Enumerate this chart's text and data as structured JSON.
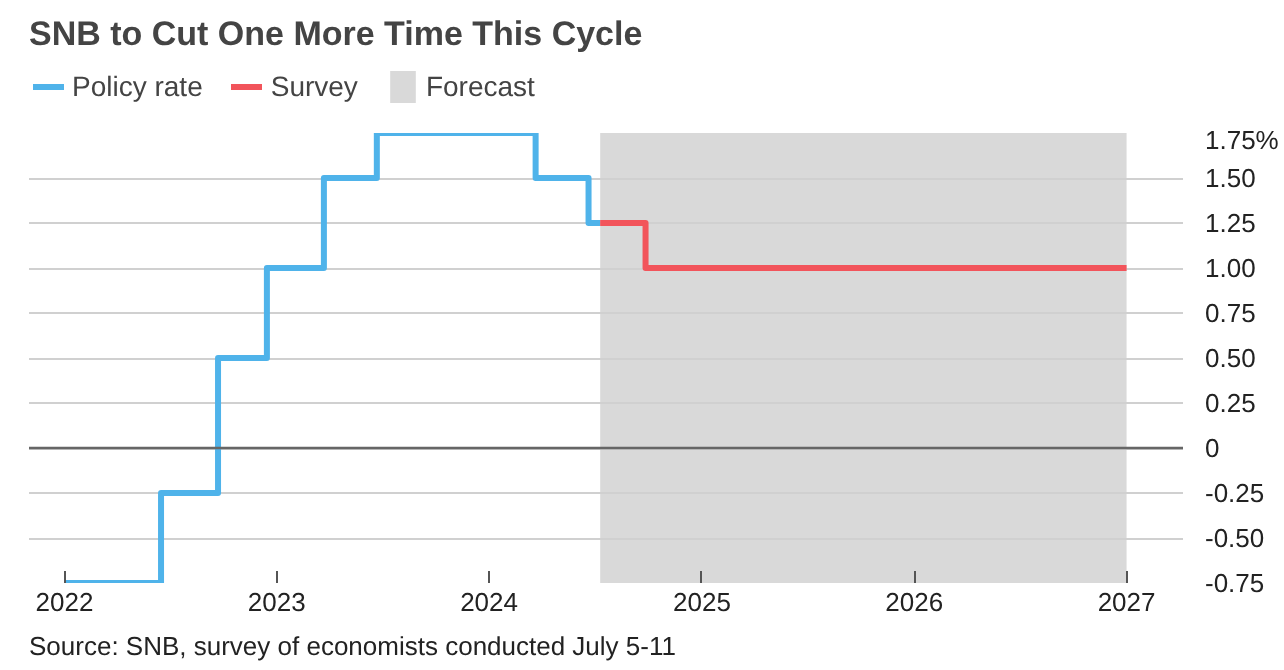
{
  "chart_data": {
    "type": "step",
    "title": "SNB to Cut One More Time This Cycle",
    "annotations": [
      "Source: SNB, survey of economists conducted July 5-11"
    ],
    "series": [
      {
        "name": "Policy rate",
        "color": "#4fb3ea",
        "x": [
          "2022-01-01",
          "2022-06-16",
          "2022-09-22",
          "2022-12-15",
          "2023-03-23",
          "2023-06-22",
          "2024-03-21",
          "2024-06-20",
          "2024-07-10"
        ],
        "values": [
          -0.75,
          -0.25,
          0.5,
          1.0,
          1.5,
          1.75,
          1.5,
          1.25,
          1.25
        ]
      },
      {
        "name": "Survey",
        "color": "#f2545b",
        "x": [
          "2024-07-10",
          "2024-09-26",
          "2027-01-01"
        ],
        "values": [
          1.25,
          1.0,
          1.0
        ]
      }
    ],
    "bands": [
      {
        "axis": "x",
        "from": "2024-07-10",
        "to": "2027-01-01",
        "label": "Forecast",
        "color": "#d9d9d9"
      }
    ],
    "ref_lines": [
      {
        "axis": "y",
        "value": 0,
        "label": null,
        "color": "#666666"
      }
    ],
    "xlim": [
      "2021-11-01",
      "2027-04-08"
    ],
    "xticks": [
      {
        "value": "2022-01-01",
        "label": "2022"
      },
      {
        "value": "2023-01-01",
        "label": "2023"
      },
      {
        "value": "2024-01-01",
        "label": "2024"
      },
      {
        "value": "2025-01-01",
        "label": "2025"
      },
      {
        "value": "2026-01-01",
        "label": "2026"
      },
      {
        "value": "2027-01-01",
        "label": "2027"
      }
    ],
    "ylim": [
      -0.75,
      1.75
    ],
    "yticks": [
      {
        "value": 1.75,
        "label": "1.75%"
      },
      {
        "value": 1.5,
        "label": "1.50"
      },
      1.25,
      {
        "value": 1.0,
        "label": "1.00"
      },
      0.75,
      {
        "value": 0.5,
        "label": "0.50"
      },
      0.25,
      0,
      -0.25,
      {
        "value": -0.5,
        "label": "-0.50"
      },
      -0.75
    ],
    "grid": "y",
    "legend": "top left",
    "line_style": "solid",
    "marker": "none"
  }
}
